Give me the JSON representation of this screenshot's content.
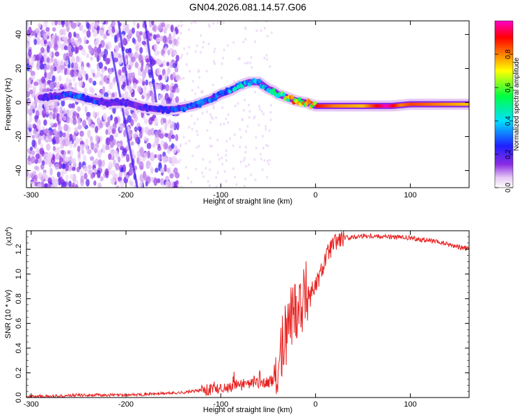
{
  "title": "GN04.2026.081.14.57.G06",
  "chart_data": [
    {
      "type": "heatmap",
      "title": "GN04.2026.081.14.57.G06",
      "xlabel": "Height of straight line (km)",
      "ylabel": "Frequency (Hz)",
      "xlim": [
        -305,
        162
      ],
      "ylim": [
        -50,
        48
      ],
      "xticks": [
        -300,
        -200,
        -100,
        0,
        100
      ],
      "yticks": [
        -40,
        -20,
        0,
        20,
        40
      ],
      "xtick_labels": [
        "-300",
        "-200",
        "-100",
        "0",
        "100"
      ],
      "ytick_labels": [
        "-40",
        "-20",
        "0",
        "20",
        "40"
      ],
      "colorbar": {
        "label": "Normalized spectral amplitude",
        "range": [
          0,
          1
        ],
        "ticks": [
          0.0,
          0.2,
          0.4,
          0.6,
          0.8
        ],
        "tick_labels": [
          "0.0",
          "0.2",
          "0.4",
          "0.6",
          "0.8"
        ],
        "colormap": "rainbow (white-purple-blue-cyan-green-yellow-orange-red-magenta)"
      },
      "ridge_frequency": {
        "x": [
          -285,
          -270,
          -260,
          -240,
          -220,
          -200,
          -180,
          -165,
          -150,
          -140,
          -130,
          -120,
          -110,
          -100,
          -90,
          -80,
          -70,
          -60,
          -55,
          -50,
          -45,
          -40,
          -30,
          -20,
          -10,
          0,
          20,
          50,
          80,
          100,
          130,
          160
        ],
        "y": [
          3,
          4,
          5,
          2,
          0,
          0,
          -3,
          -4,
          -4,
          -3,
          -2,
          0,
          2,
          5,
          7,
          10,
          12,
          12,
          10,
          8,
          7,
          5,
          3,
          1,
          0,
          -2,
          -2,
          -2,
          -2,
          -1,
          -1,
          -1
        ]
      },
      "ridge_amplitude": {
        "x": [
          -285,
          -260,
          -200,
          -150,
          -120,
          -100,
          -80,
          -60,
          -40,
          -20,
          0,
          20,
          50,
          75,
          90,
          100,
          130,
          160
        ],
        "y": [
          0.2,
          0.35,
          0.2,
          0.3,
          0.35,
          0.35,
          0.45,
          0.4,
          0.55,
          0.85,
          0.9,
          0.8,
          0.75,
          1.0,
          0.8,
          0.85,
          0.8,
          0.75
        ]
      }
    },
    {
      "type": "line",
      "xlabel": "Height of straight line (km)",
      "ylabel": "SNR (10 * v/v)",
      "y_multiplier": "(x10",
      "y_multiplier_exp": "4",
      "y_multiplier_close": ")",
      "xlim": [
        -305,
        162
      ],
      "ylim": [
        0,
        1.35
      ],
      "xticks": [
        -300,
        -200,
        -100,
        0,
        100
      ],
      "yticks": [
        0.0,
        0.2,
        0.4,
        0.6,
        0.8,
        1.0,
        1.2
      ],
      "xtick_labels": [
        "-300",
        "-200",
        "-100",
        "0",
        "100"
      ],
      "ytick_labels": [
        "0.0",
        "0.2",
        "0.4",
        "0.6",
        "0.8",
        "1.0",
        "1.2"
      ],
      "series": [
        {
          "color": "#e8201f",
          "x": [
            -305,
            -280,
            -250,
            -200,
            -170,
            -140,
            -120,
            -100,
            -80,
            -60,
            -50,
            -42,
            -35,
            -30,
            -25,
            -20,
            -15,
            -10,
            0,
            5,
            10,
            15,
            20,
            25,
            30,
            40,
            50,
            60,
            80,
            100,
            120,
            140,
            162
          ],
          "y": [
            0.01,
            0.01,
            0.02,
            0.02,
            0.03,
            0.04,
            0.06,
            0.08,
            0.1,
            0.12,
            0.12,
            0.15,
            0.4,
            0.55,
            0.7,
            0.75,
            0.8,
            0.85,
            0.9,
            1.0,
            1.12,
            1.2,
            1.25,
            1.28,
            1.29,
            1.3,
            1.31,
            1.31,
            1.3,
            1.29,
            1.27,
            1.24,
            1.2
          ]
        }
      ]
    }
  ]
}
